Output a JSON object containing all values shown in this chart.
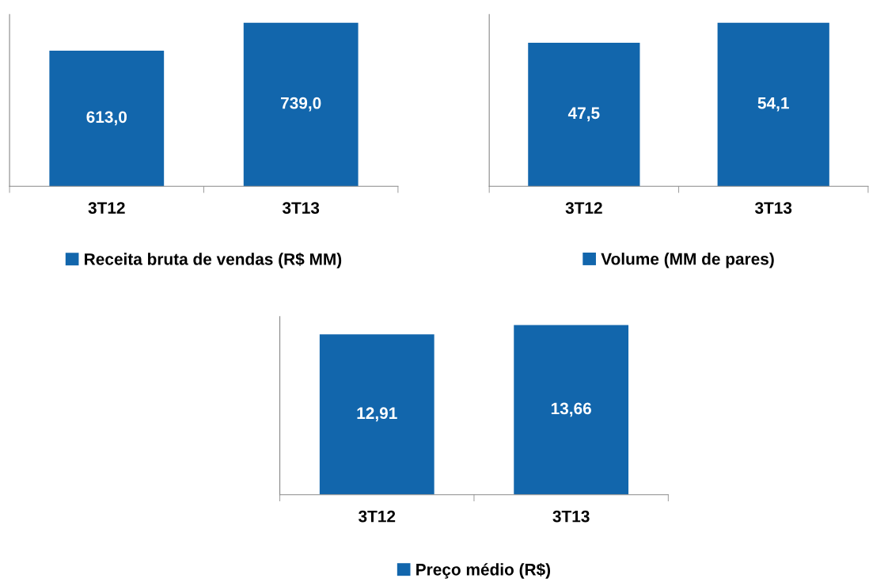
{
  "chart_data": [
    {
      "type": "bar",
      "categories": [
        "3T12",
        "3T13"
      ],
      "series": [
        {
          "name": "Receita bruta de vendas (R$ MM)",
          "color": "#1266ac",
          "values": [
            613.0,
            739.0
          ],
          "value_labels": [
            "613,0",
            "739,0"
          ]
        }
      ],
      "legend": "bottom",
      "grid": false
    },
    {
      "type": "bar",
      "categories": [
        "3T12",
        "3T13"
      ],
      "series": [
        {
          "name": "Volume (MM de pares)",
          "color": "#1266ac",
          "values": [
            47.5,
            54.1
          ],
          "value_labels": [
            "47,5",
            "54,1"
          ]
        }
      ],
      "legend": "bottom",
      "grid": false
    },
    {
      "type": "bar",
      "categories": [
        "3T12",
        "3T13"
      ],
      "series": [
        {
          "name": "Preço médio (R$)",
          "color": "#1266ac",
          "values": [
            12.91,
            13.66
          ],
          "value_labels": [
            "12,91",
            "13,66"
          ]
        }
      ],
      "legend": "bottom",
      "grid": false
    }
  ]
}
